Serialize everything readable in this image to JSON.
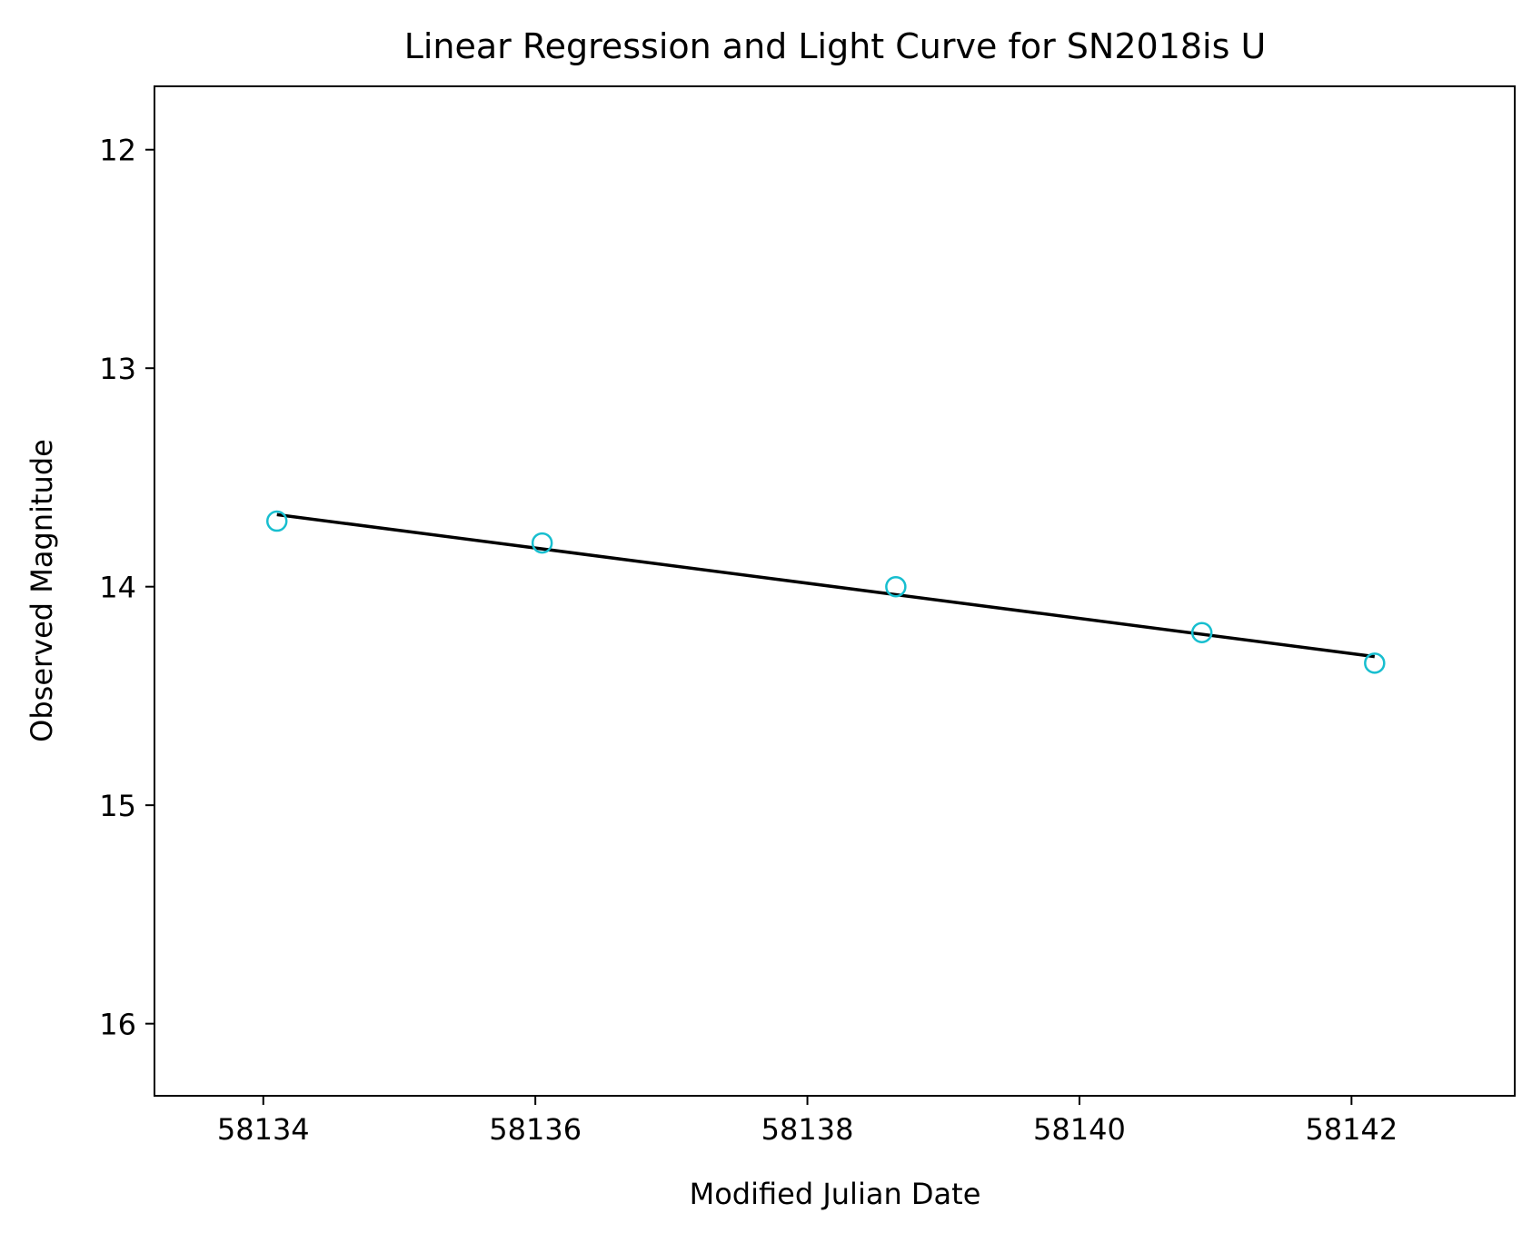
{
  "chart_data": {
    "type": "scatter",
    "title": "Linear Regression and Light Curve for SN2018is U",
    "xlabel": "Modified Julian Date",
    "ylabel": "Observed Magnitude",
    "xlim": [
      58133.2,
      58143.2
    ],
    "ylim": [
      16.33,
      11.71
    ],
    "y_inverted": true,
    "xticks": [
      58134,
      58136,
      58138,
      58140,
      58142
    ],
    "yticks": [
      12,
      13,
      14,
      15,
      16
    ],
    "grid": false,
    "series": [
      {
        "kind": "scatter",
        "marker": "open-circle",
        "color": "#17becf",
        "points": [
          {
            "x": 58134.1,
            "y": 13.7
          },
          {
            "x": 58136.05,
            "y": 13.8
          },
          {
            "x": 58138.65,
            "y": 14.0
          },
          {
            "x": 58140.9,
            "y": 14.21
          },
          {
            "x": 58142.17,
            "y": 14.35
          }
        ]
      },
      {
        "kind": "line",
        "color": "#000000",
        "points": [
          {
            "x": 58134.1,
            "y": 13.67
          },
          {
            "x": 58142.17,
            "y": 14.32
          }
        ]
      }
    ]
  }
}
